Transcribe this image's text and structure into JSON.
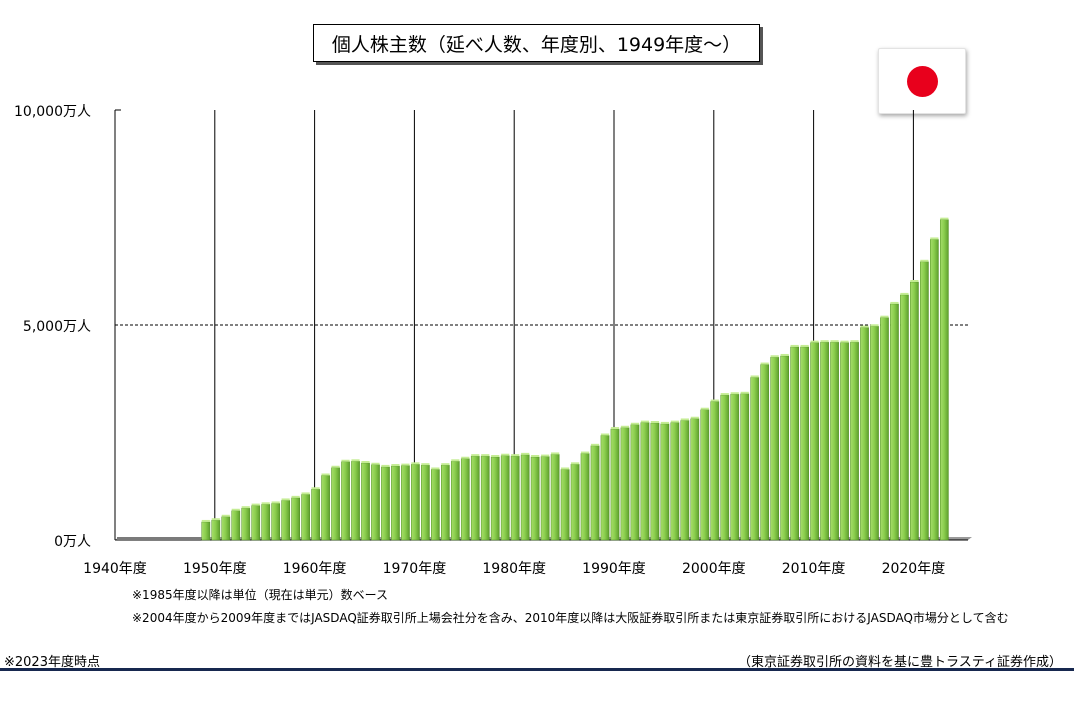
{
  "title": "個人株主数（延べ人数、年度別、1949年度～）",
  "flag_icon": "japan-flag-icon",
  "notes": [
    "※1985年度以降は単位（現在は単元）数ベース",
    "※2004年度から2009年度まではJASDAQ証券取引所上場会社分を含み、2010年度以降は大阪証券取引所または東京証券取引所におけるJASDAQ市場分として含む"
  ],
  "footer": {
    "left": "※2023年度時点",
    "right": "（東京証券取引所の資料を基に豊トラスティ証券作成）"
  },
  "colors": {
    "bar_light": "#a6dc6a",
    "bar_mid": "#7dc242",
    "bar_dark": "#4f8f22",
    "gridline": "#000000",
    "flag_red": "#e8001c",
    "rule": "#17284f"
  },
  "chart_data": {
    "type": "bar",
    "title": "個人株主数（延べ人数、年度別、1949年度～）",
    "xlabel": "",
    "ylabel": "",
    "ylim": [
      0,
      10000
    ],
    "yticks": [
      {
        "value": 0,
        "label": "0万人"
      },
      {
        "value": 5000,
        "label": "5,000万人"
      },
      {
        "value": 10000,
        "label": "10,000万人"
      }
    ],
    "xtick_labels": [
      "1940年度",
      "1950年度",
      "1960年度",
      "1970年度",
      "1980年度",
      "1990年度",
      "2000年度",
      "2010年度",
      "2020年度"
    ],
    "xtick_years": [
      1940,
      1950,
      1960,
      1970,
      1980,
      1990,
      2000,
      2010,
      2020
    ],
    "x_range": [
      1940,
      2024
    ],
    "grid": {
      "vertical_at_decades": true,
      "dashed_horizontal_at": 5000
    },
    "x": [
      1949,
      1950,
      1951,
      1952,
      1953,
      1954,
      1955,
      1956,
      1957,
      1958,
      1959,
      1960,
      1961,
      1962,
      1963,
      1964,
      1965,
      1966,
      1967,
      1968,
      1969,
      1970,
      1971,
      1972,
      1973,
      1974,
      1975,
      1976,
      1977,
      1978,
      1979,
      1980,
      1981,
      1982,
      1983,
      1984,
      1985,
      1986,
      1987,
      1988,
      1989,
      1990,
      1991,
      1992,
      1993,
      1994,
      1995,
      1996,
      1997,
      1998,
      1999,
      2000,
      2001,
      2002,
      2003,
      2004,
      2005,
      2006,
      2007,
      2008,
      2009,
      2010,
      2011,
      2012,
      2013,
      2014,
      2015,
      2016,
      2017,
      2018,
      2019,
      2020,
      2021,
      2022,
      2023
    ],
    "values": [
      420,
      460,
      540,
      680,
      740,
      800,
      830,
      850,
      920,
      980,
      1060,
      1180,
      1500,
      1680,
      1820,
      1830,
      1790,
      1750,
      1700,
      1720,
      1730,
      1760,
      1740,
      1640,
      1740,
      1830,
      1890,
      1950,
      1950,
      1930,
      1960,
      1950,
      1980,
      1930,
      1940,
      1990,
      1640,
      1760,
      2010,
      2190,
      2430,
      2580,
      2610,
      2680,
      2730,
      2720,
      2700,
      2730,
      2780,
      2820,
      3030,
      3220,
      3370,
      3390,
      3400,
      3780,
      4080,
      4250,
      4280,
      4490,
      4490,
      4590,
      4600,
      4600,
      4590,
      4600,
      4940,
      4970,
      5170,
      5490,
      5700,
      6000,
      6470,
      6990,
      7450
    ]
  }
}
